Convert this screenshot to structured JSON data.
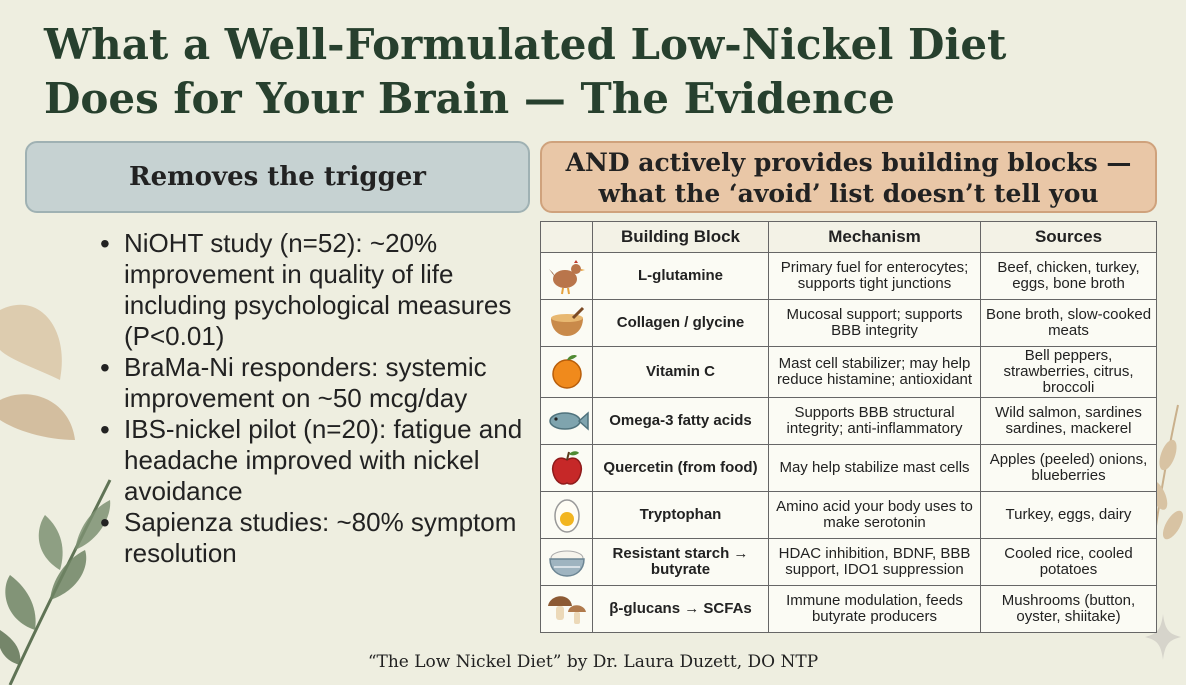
{
  "title": {
    "line1": "What a Well-Formulated Low-Nickel Diet",
    "line2": "Does for Your Brain — The Evidence"
  },
  "left": {
    "header": "Removes the trigger",
    "bullets": [
      "NiOHT study (n=52): ~20% improvement in quality of life including psychological measures (P<0.01)",
      "BraMa-Ni responders: systemic improvement on ~50 mcg/day",
      "IBS-nickel pilot (n=20): fatigue and headache improved with nickel avoidance",
      "Sapienza studies: ~80% symptom resolution"
    ]
  },
  "right": {
    "header_line1": "AND actively provides building blocks —",
    "header_line2": "what the ‘avoid’ list doesn’t tell you",
    "columns": [
      "Building Block",
      "Mechanism",
      "Sources"
    ],
    "rows": [
      {
        "icon": "chicken-icon",
        "block": "L-glutamine",
        "mechanism": "Primary fuel for enterocytes; supports tight junctions",
        "sources": "Beef, chicken, turkey, eggs, bone broth"
      },
      {
        "icon": "broth-bowl-icon",
        "block": "Collagen / glycine",
        "mechanism": "Mucosal support; supports BBB integrity",
        "sources": "Bone broth, slow-cooked meats"
      },
      {
        "icon": "orange-icon",
        "block": "Vitamin C",
        "mechanism": "Mast cell stabilizer; may help reduce histamine; antioxidant",
        "sources": "Bell peppers, strawberries, citrus, broccoli"
      },
      {
        "icon": "fish-icon",
        "block": "Omega-3 fatty acids",
        "mechanism": "Supports BBB structural integrity; anti-inflammatory",
        "sources": "Wild salmon, sardines sardines, mackerel"
      },
      {
        "icon": "apple-icon",
        "block": "Quercetin (from food)",
        "mechanism": "May help stabilize mast cells",
        "sources": "Apples (peeled) onions, blueberries"
      },
      {
        "icon": "egg-icon",
        "block": "Tryptophan",
        "mechanism": "Amino acid your body uses to make serotonin",
        "sources": "Turkey, eggs, dairy"
      },
      {
        "icon": "rice-bowl-icon",
        "block": "Resistant starch → butyrate",
        "mechanism": "HDAC inhibition, BDNF, BBB support, IDO1 suppression",
        "sources": "Cooled rice, cooled potatoes"
      },
      {
        "icon": "mushroom-icon",
        "block": "β-glucans → SCFAs",
        "mechanism": "Immune modulation, feeds butyrate producers",
        "sources": "Mushrooms (button, oyster, shiitake)"
      }
    ]
  },
  "footer": "“The Low Nickel Diet” by Dr. Laura Duzett, DO NTP"
}
